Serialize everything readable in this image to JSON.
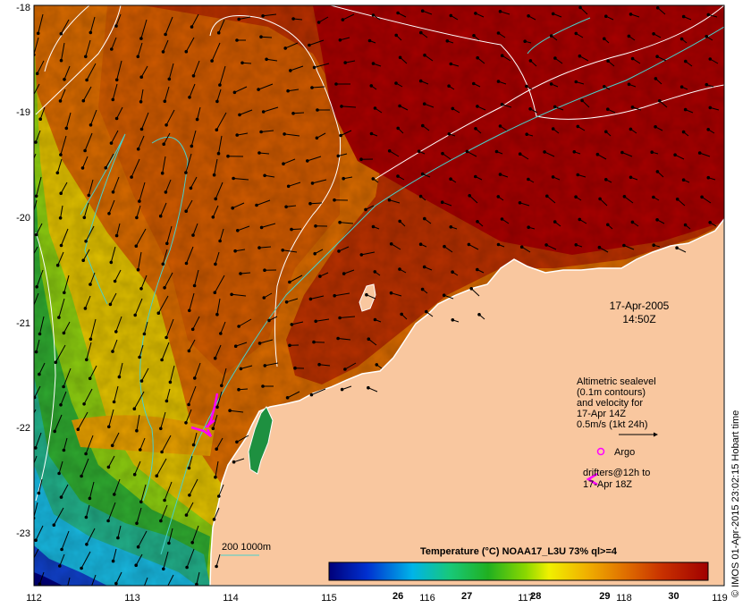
{
  "map": {
    "date": "17-Apr-2005",
    "time": "14:50Z",
    "x_ticks": [
      "112",
      "113",
      "114",
      "115",
      "116",
      "117",
      "118",
      "119"
    ],
    "y_ticks": [
      "-18",
      "-19",
      "-20",
      "-21",
      "-22",
      "-23"
    ],
    "legend": {
      "sealevel_lines": [
        "Altimetric sealevel",
        "(0.1m contours)",
        "and velocity for",
        "17-Apr 14Z",
        "0.5m/s (1kt 24h)"
      ],
      "argo_label": "Argo",
      "drifter_lines": [
        "drifters@12h to",
        "17-Apr 18Z"
      ],
      "isobath_label": "200  1000m"
    },
    "colorbar": {
      "title": "Temperature (°C) NOAA17_L3U 73% ql>=4",
      "ticks": [
        "26",
        "27",
        "28",
        "29",
        "30"
      ],
      "range": [
        25,
        30.5
      ]
    },
    "credit": "© IMOS 01-Apr-2015 23:02:15 Hobart time",
    "colors": {
      "land": "#f9c79f",
      "hot": "#a80000",
      "isobath": "#48d1cc",
      "drifter": "#ff00ff"
    }
  }
}
